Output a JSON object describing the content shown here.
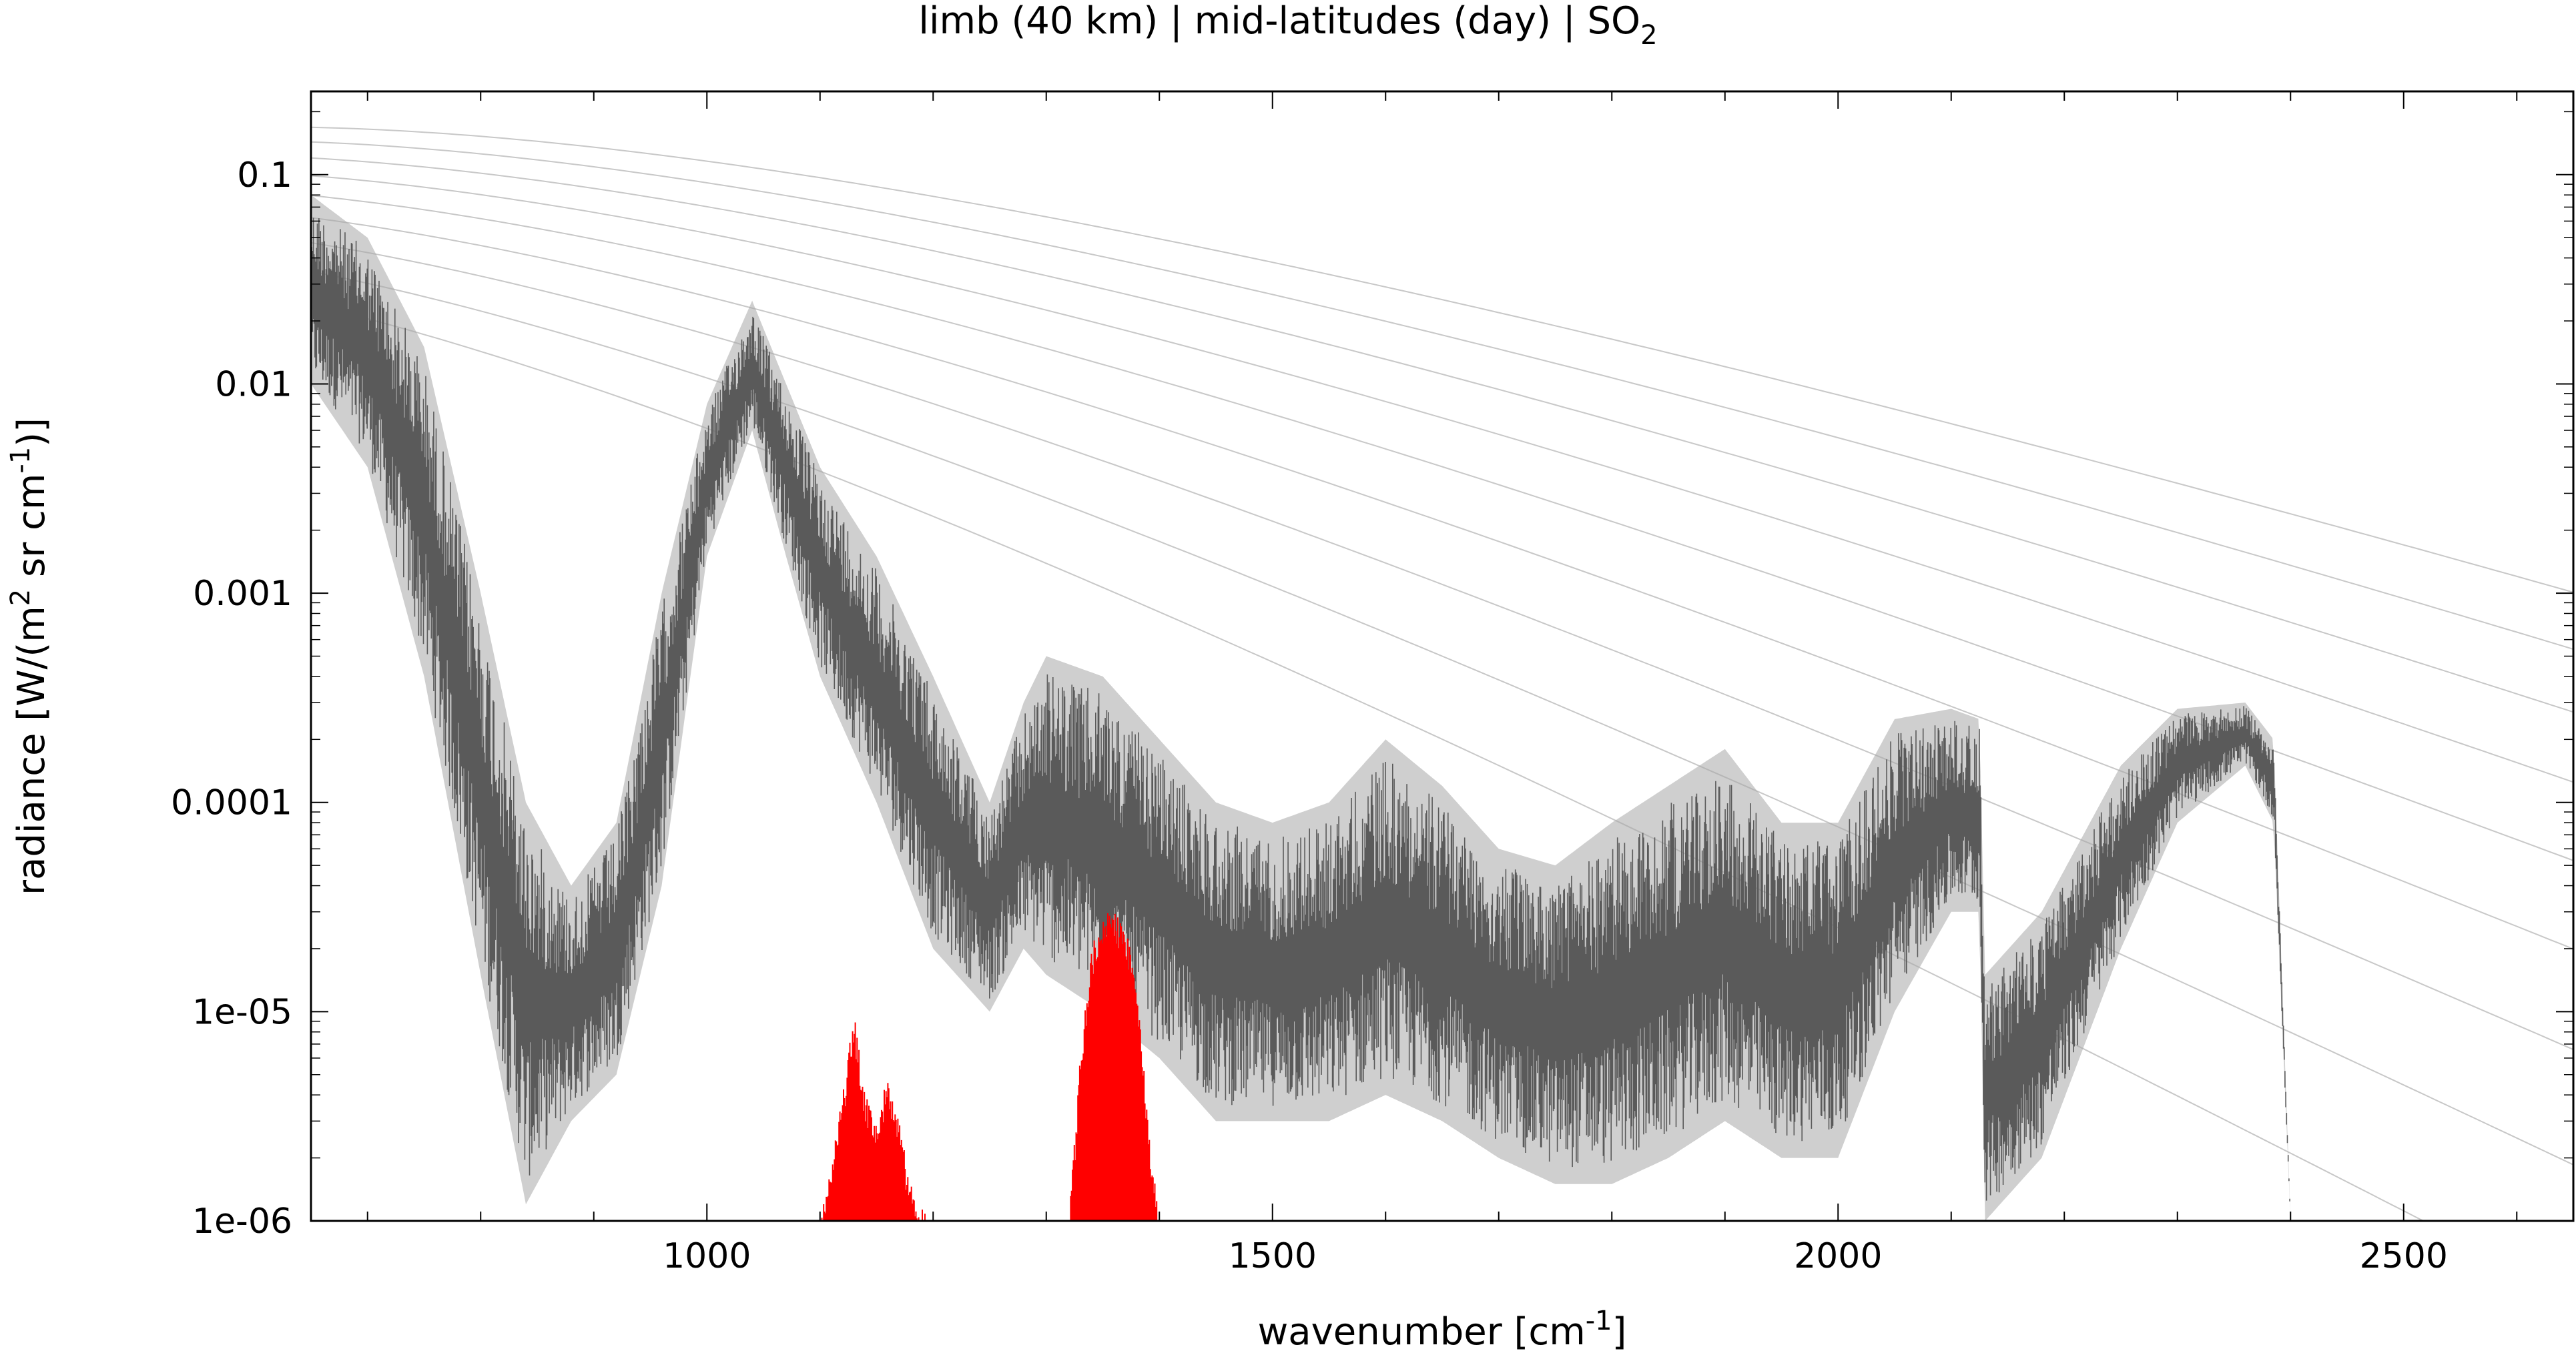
{
  "chart_data": {
    "type": "line",
    "title_main": "limb (40 km) | mid-latitudes (day) | SO",
    "title_sub": "2",
    "xlabel_main": "wavenumber [cm",
    "xlabel_sup": "-1",
    "xlabel_end": "]",
    "ylabel_a": "radiance [W/(m",
    "ylabel_sup1": "2",
    "ylabel_b": " sr cm",
    "ylabel_sup2": "-1",
    "ylabel_end": ")]",
    "xlim": [
      650,
      2650
    ],
    "ylim": [
      1e-06,
      0.25
    ],
    "yscale": "log",
    "x_ticks": [
      1000,
      1500,
      2000,
      2500
    ],
    "x_tick_labels": [
      "1000",
      "1500",
      "2000",
      "2500"
    ],
    "y_ticks": [
      1e-06,
      1e-05,
      0.0001,
      0.001,
      0.01,
      0.1
    ],
    "y_tick_labels": [
      "1e-06",
      "1e-05",
      "0.0001",
      "0.001",
      "0.01",
      "0.1"
    ],
    "grid": false,
    "colors": {
      "total_spectrum": "#5a5a5a",
      "upper_envelope": "#a8a8a8",
      "so2_contribution": "#ff0000",
      "planck_curves": "#c8c8c8"
    },
    "series": [
      {
        "role": "total",
        "x": [
          650,
          700,
          750,
          800,
          840,
          880,
          920,
          960,
          1000,
          1040,
          1070,
          1100,
          1150,
          1200,
          1250,
          1280,
          1300,
          1350,
          1400,
          1450,
          1500,
          1550,
          1600,
          1650,
          1700,
          1750,
          1800,
          1850,
          1900,
          1950,
          2000,
          2050,
          2100,
          2125,
          2130,
          2180,
          2250,
          2300,
          2360,
          2385,
          2400,
          2450,
          2500,
          2550,
          2600,
          2650
        ],
        "y_upper": [
          0.08,
          0.05,
          0.015,
          0.001,
          0.0001,
          4e-05,
          8e-05,
          0.001,
          0.008,
          0.025,
          0.01,
          0.004,
          0.0015,
          0.0004,
          0.0001,
          0.0003,
          0.0005,
          0.0004,
          0.0002,
          0.0001,
          8e-05,
          0.0001,
          0.0002,
          0.00012,
          6e-05,
          5e-05,
          8e-05,
          0.00012,
          0.00018,
          8e-05,
          8e-05,
          0.00025,
          0.00028,
          0.00025,
          1.5e-05,
          3e-05,
          0.00015,
          0.00028,
          0.0003,
          0.0002,
          1e-06,
          1e-06,
          1e-06,
          1e-06,
          1e-06,
          1e-06
        ],
        "y_lower": [
          0.01,
          0.004,
          0.0004,
          1.5e-05,
          1.2e-06,
          3e-06,
          5e-06,
          4e-05,
          0.0015,
          0.006,
          0.0015,
          0.0004,
          0.0001,
          2e-05,
          1e-05,
          2e-05,
          1.5e-05,
          1e-05,
          6e-06,
          3e-06,
          3e-06,
          3e-06,
          4e-06,
          3e-06,
          2e-06,
          1.5e-06,
          1.5e-06,
          2e-06,
          3e-06,
          2e-06,
          2e-06,
          1e-05,
          3e-05,
          3e-05,
          1e-06,
          2e-06,
          2e-05,
          8e-05,
          0.00015,
          8e-05,
          1e-06,
          1e-06,
          1e-06,
          1e-06,
          1e-06,
          1e-06
        ]
      },
      {
        "role": "so2",
        "x": [
          1100,
          1110,
          1120,
          1130,
          1140,
          1150,
          1160,
          1170,
          1180,
          1190,
          1200,
          1320,
          1330,
          1340,
          1350,
          1360,
          1370,
          1380,
          1390,
          1400
        ],
        "y": [
          1e-06,
          2e-06,
          4e-06,
          1e-05,
          4e-06,
          3e-06,
          5e-06,
          3e-06,
          1.5e-06,
          1.2e-06,
          1e-06,
          1e-06,
          6e-06,
          2e-05,
          3e-05,
          3e-05,
          2.5e-05,
          1.5e-05,
          3e-06,
          1e-06
        ]
      }
    ],
    "planck_curves_temperature_K": [
      190,
      205,
      220,
      235,
      250,
      265,
      280,
      295,
      310
    ]
  }
}
